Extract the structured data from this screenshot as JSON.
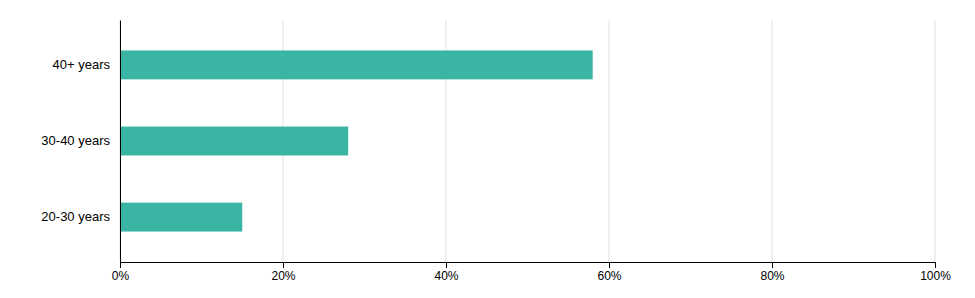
{
  "chart_data": {
    "type": "bar",
    "orientation": "horizontal",
    "categories": [
      "20-30 years",
      "30-40 years",
      "40+ years"
    ],
    "values": [
      15,
      28,
      58
    ],
    "color": "#3ab5a4",
    "xlim": [
      0,
      100
    ],
    "xticks": [
      {
        "value": 0,
        "label": "0%"
      },
      {
        "value": 20,
        "label": "20%"
      },
      {
        "value": 40,
        "label": "40%"
      },
      {
        "value": 60,
        "label": "60%"
      },
      {
        "value": 80,
        "label": "80%"
      },
      {
        "value": 100,
        "label": "100%"
      }
    ],
    "grid": true
  }
}
